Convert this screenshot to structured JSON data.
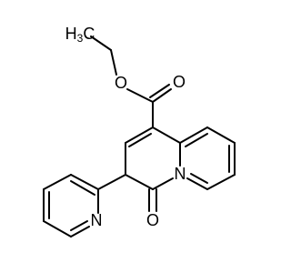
{
  "methyl": {
    "h": "H",
    "sub": "3",
    "c": "C"
  },
  "atoms": [
    "O",
    "O",
    "O",
    "N",
    "N"
  ]
}
